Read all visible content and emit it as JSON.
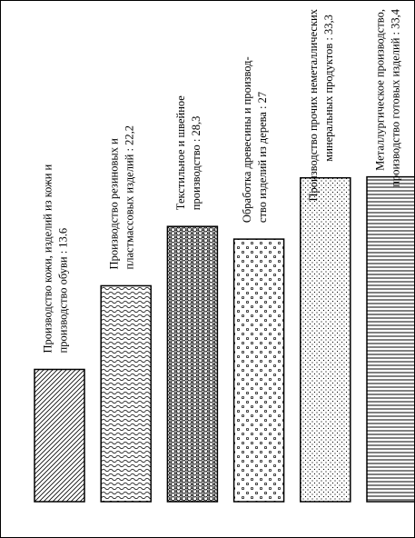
{
  "chart_data": {
    "type": "bar",
    "categories": [
      [
        "Производство кожи, изделий из кожи и",
        "производство обуви : 13.6"
      ],
      [
        "Производство резиновых и",
        "пластмассовых изделий : 22,2"
      ],
      [
        "Текстильное и швейное",
        "производство : 28,3"
      ],
      [
        "Обработка древесины и производ-",
        "ство изделий из дерева : 27"
      ],
      [
        "Производство прочих неметаллических",
        "минеральных продуктов : 33,3"
      ],
      [
        "Металлургическое производство,",
        "производство готовых изделий : 33,4"
      ]
    ],
    "values": [
      13.6,
      22.2,
      28.3,
      27,
      33.3,
      33.4
    ],
    "ylim": [
      0,
      50
    ],
    "color": "#000000"
  }
}
